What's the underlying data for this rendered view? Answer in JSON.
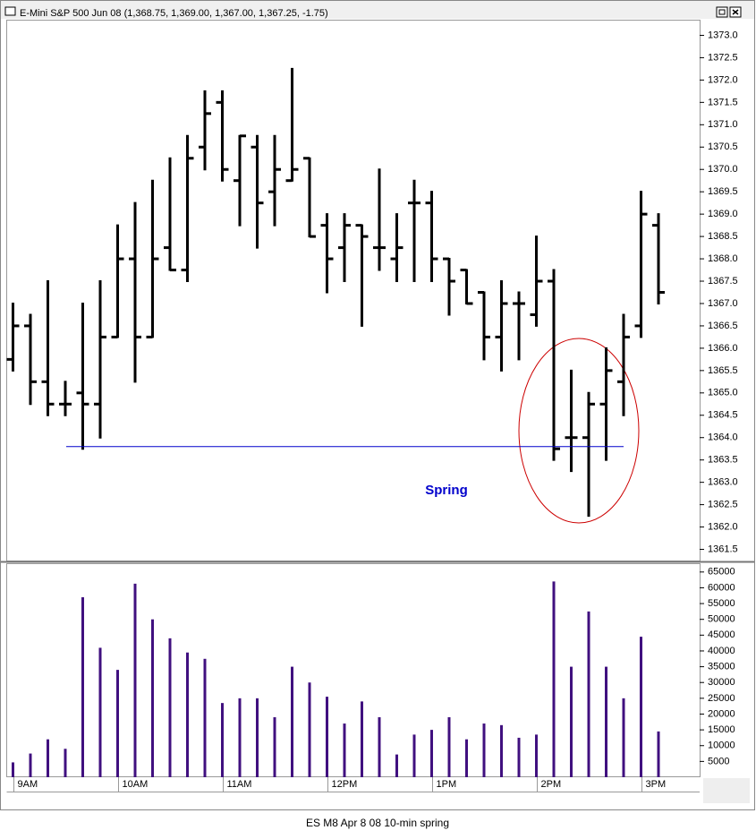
{
  "chart_data": [
    {
      "type": "ohlc",
      "title": "E-Mini S&P 500 Jun 08 (1,368.75, 1,369.00, 1,367.00, 1,367.25, -1.75)",
      "color": "#000000",
      "open": [
        1365.75,
        1366.5,
        1365.25,
        1364.75,
        1365.0,
        1364.75,
        1366.25,
        1368.0,
        1366.25,
        1368.25,
        1367.75,
        1370.5,
        1371.5,
        1369.75,
        1370.5,
        1369.5,
        1369.75,
        1370.25,
        1368.75,
        1368.25,
        1368.75,
        1368.25,
        1368.0,
        1369.25,
        1369.25,
        1368.0,
        1367.75,
        1367.25,
        1366.25,
        1367.0,
        1366.75,
        1367.5,
        1364.0,
        1364.0,
        1364.75,
        1365.25,
        1366.5,
        1368.75
      ],
      "high": [
        1367.0,
        1366.75,
        1367.5,
        1365.25,
        1367.0,
        1367.5,
        1368.75,
        1369.25,
        1369.75,
        1370.25,
        1370.75,
        1371.75,
        1371.75,
        1370.75,
        1370.75,
        1370.75,
        1372.25,
        1370.25,
        1369.0,
        1369.0,
        1368.75,
        1370.0,
        1369.0,
        1369.75,
        1369.5,
        1368.0,
        1367.75,
        1367.25,
        1367.5,
        1367.25,
        1368.5,
        1367.75,
        1365.5,
        1365.0,
        1366.0,
        1366.75,
        1369.5,
        1369.0
      ],
      "low": [
        1365.5,
        1364.75,
        1364.5,
        1364.5,
        1363.75,
        1364.0,
        1366.25,
        1365.25,
        1366.25,
        1367.75,
        1367.5,
        1370.0,
        1369.75,
        1368.75,
        1368.25,
        1368.75,
        1369.75,
        1368.5,
        1367.25,
        1367.5,
        1366.5,
        1367.75,
        1367.5,
        1367.5,
        1367.5,
        1366.75,
        1367.0,
        1365.75,
        1365.5,
        1365.75,
        1366.5,
        1363.5,
        1363.25,
        1362.25,
        1363.5,
        1364.5,
        1366.25,
        1367.0
      ],
      "close": [
        1366.5,
        1365.25,
        1364.75,
        1364.75,
        1364.75,
        1366.25,
        1368.0,
        1366.25,
        1368.0,
        1367.75,
        1370.25,
        1371.25,
        1370.0,
        1370.75,
        1369.25,
        1370.0,
        1370.0,
        1368.5,
        1368.0,
        1368.75,
        1368.5,
        1368.25,
        1368.25,
        1369.25,
        1368.0,
        1367.5,
        1367.0,
        1366.25,
        1367.0,
        1367.0,
        1367.5,
        1363.75,
        1364.0,
        1364.75,
        1365.5,
        1366.25,
        1369.0,
        1367.25
      ],
      "ylim": [
        1361.25,
        1373.35
      ],
      "yticks": [
        {
          "value": 1361.5,
          "label": "1361.5"
        },
        {
          "value": 1362,
          "label": "1362.0"
        },
        {
          "value": 1362.5,
          "label": "1362.5"
        },
        {
          "value": 1363,
          "label": "1363.0"
        },
        {
          "value": 1363.5,
          "label": "1363.5"
        },
        {
          "value": 1364,
          "label": "1364.0"
        },
        {
          "value": 1364.5,
          "label": "1364.5"
        },
        {
          "value": 1365,
          "label": "1365.0"
        },
        {
          "value": 1365.5,
          "label": "1365.5"
        },
        {
          "value": 1366,
          "label": "1366.0"
        },
        {
          "value": 1366.5,
          "label": "1366.5"
        },
        {
          "value": 1367,
          "label": "1367.0"
        },
        {
          "value": 1367.5,
          "label": "1367.5"
        },
        {
          "value": 1368,
          "label": "1368.0"
        },
        {
          "value": 1368.5,
          "label": "1368.5"
        },
        {
          "value": 1369,
          "label": "1369.0"
        },
        {
          "value": 1369.5,
          "label": "1369.5"
        },
        {
          "value": 1370,
          "label": "1370.0"
        },
        {
          "value": 1370.5,
          "label": "1370.5"
        },
        {
          "value": 1371,
          "label": "1371.0"
        },
        {
          "value": 1371.5,
          "label": "1371.5"
        },
        {
          "value": 1372,
          "label": "1372.0"
        },
        {
          "value": 1372.5,
          "label": "1372.5"
        },
        {
          "value": 1373,
          "label": "1373.0"
        }
      ],
      "support_line": {
        "value": 1363.8,
        "color": "#0000cc"
      },
      "annotation": "Spring"
    },
    {
      "type": "bar",
      "color": "#40107f",
      "categories": [
        "9AM",
        null,
        null,
        null,
        null,
        null,
        "10AM",
        null,
        null,
        null,
        null,
        null,
        "11AM",
        null,
        null,
        null,
        null,
        null,
        "12PM",
        null,
        null,
        null,
        null,
        null,
        "1PM",
        null,
        null,
        null,
        null,
        null,
        "2PM",
        null,
        null,
        null,
        null,
        null,
        "3PM",
        null
      ],
      "values": [
        4700,
        7500,
        12000,
        9000,
        57000,
        41000,
        34000,
        61300,
        50000,
        44000,
        39500,
        37500,
        23500,
        25000,
        25000,
        19000,
        35000,
        30000,
        25500,
        17000,
        24000,
        19000,
        7200,
        13500,
        15000,
        19000,
        12000,
        17000,
        16500,
        12500,
        13500,
        62000,
        35000,
        52500,
        35000,
        25000,
        44500,
        14500
      ],
      "ylim": [
        0,
        67500
      ],
      "yticks": [
        5000,
        10000,
        15000,
        20000,
        25000,
        30000,
        35000,
        40000,
        45000,
        50000,
        55000,
        60000,
        65000
      ]
    },
    {
      "caption": "ES M8 Apr 8 08 10-min spring"
    }
  ]
}
